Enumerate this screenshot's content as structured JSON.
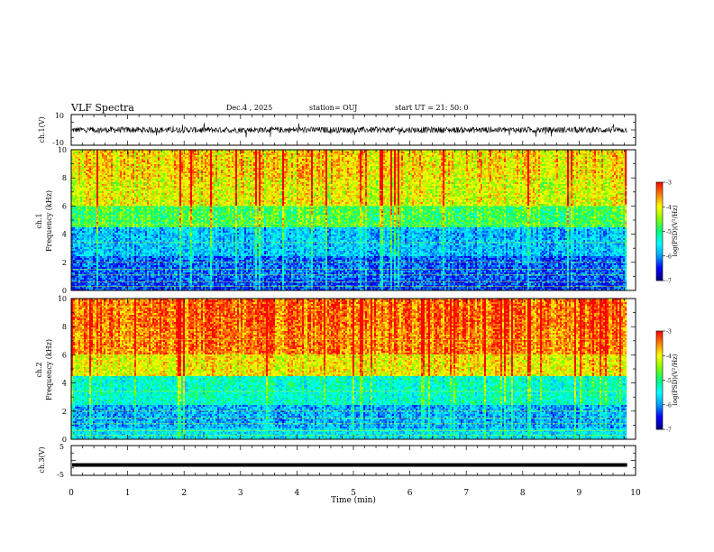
{
  "header": {
    "title": "VLF Spectra",
    "date": "Dec.4 , 2025",
    "station": "station= OUJ",
    "start_ut": "start UT =  21: 50: 0"
  },
  "colors": {
    "background": "#ffffff",
    "axis": "#000000",
    "waveform": "#000000",
    "colormap": [
      "#000080",
      "#0000ff",
      "#00a0ff",
      "#00ffff",
      "#00ff80",
      "#80ff00",
      "#ffff00",
      "#ff8000",
      "#ff0000",
      "#ffffff"
    ]
  },
  "chart_data": [
    {
      "type": "line",
      "id": "ch1_waveform",
      "ylabel": "ch.1(V)",
      "ylim": [
        -10,
        10
      ],
      "ytick_labels": [
        "10",
        "-10"
      ],
      "description_values": {
        "baseline": 0,
        "typical_amplitude": 2,
        "spike_amplitude": 5
      },
      "xlim": [
        0,
        10
      ]
    },
    {
      "type": "heatmap",
      "id": "ch1_spectrogram",
      "ylabel": "ch.1",
      "ylabel2": "Frequency (kHz)",
      "ylim": [
        0,
        10
      ],
      "ytick_labels": [
        "0",
        "2",
        "4",
        "6",
        "8",
        "10"
      ],
      "xlim": [
        0,
        9.85
      ],
      "colorbar": {
        "label": "log(PSD)(V²/Hz)",
        "range": [
          -7,
          -3
        ],
        "tick_labels": [
          "-3",
          "-4",
          "-5",
          "-6",
          "-7"
        ]
      },
      "band_profile": [
        {
          "f_from": 0,
          "f_to": 0.8,
          "level": -6.3
        },
        {
          "f_from": 0.8,
          "f_to": 2.5,
          "level": -6.2
        },
        {
          "f_from": 2.5,
          "f_to": 4.5,
          "level": -5.8
        },
        {
          "f_from": 4.5,
          "f_to": 6.0,
          "level": -4.8
        },
        {
          "f_from": 6.0,
          "f_to": 8.0,
          "level": -4.1
        },
        {
          "f_from": 8.0,
          "f_to": 10,
          "level": -3.9
        }
      ]
    },
    {
      "type": "heatmap",
      "id": "ch2_spectrogram",
      "ylabel": "ch.2",
      "ylabel2": "Frequency (kHz)",
      "ylim": [
        0,
        10
      ],
      "ytick_labels": [
        "0",
        "2",
        "4",
        "6",
        "8",
        "10"
      ],
      "xlim": [
        0,
        9.85
      ],
      "colorbar": {
        "label": "log(PSD)(V²/Hz)",
        "range": [
          -7,
          -3
        ],
        "tick_labels": [
          "-3",
          "-4",
          "-5",
          "-6",
          "-7"
        ]
      },
      "band_profile": [
        {
          "f_from": 0,
          "f_to": 0.8,
          "level": -5.6
        },
        {
          "f_from": 0.8,
          "f_to": 2.5,
          "level": -5.9
        },
        {
          "f_from": 2.5,
          "f_to": 4.5,
          "level": -5.3
        },
        {
          "f_from": 4.5,
          "f_to": 6.0,
          "level": -4.0
        },
        {
          "f_from": 6.0,
          "f_to": 8.0,
          "level": -3.5
        },
        {
          "f_from": 8.0,
          "f_to": 10,
          "level": -3.4
        }
      ]
    },
    {
      "type": "line",
      "id": "ch3_waveform",
      "ylabel": "ch.3(V)",
      "ylim": [
        -5,
        5
      ],
      "ytick_labels": [
        "5",
        "-5"
      ],
      "description_values": {
        "constant_level": -1.5
      },
      "xlim": [
        0,
        9.85
      ]
    }
  ],
  "x_axis": {
    "label": "Time (min)",
    "range": [
      0,
      10
    ],
    "tick_labels": [
      "0",
      "1",
      "2",
      "3",
      "4",
      "5",
      "6",
      "7",
      "8",
      "9",
      "10"
    ]
  }
}
